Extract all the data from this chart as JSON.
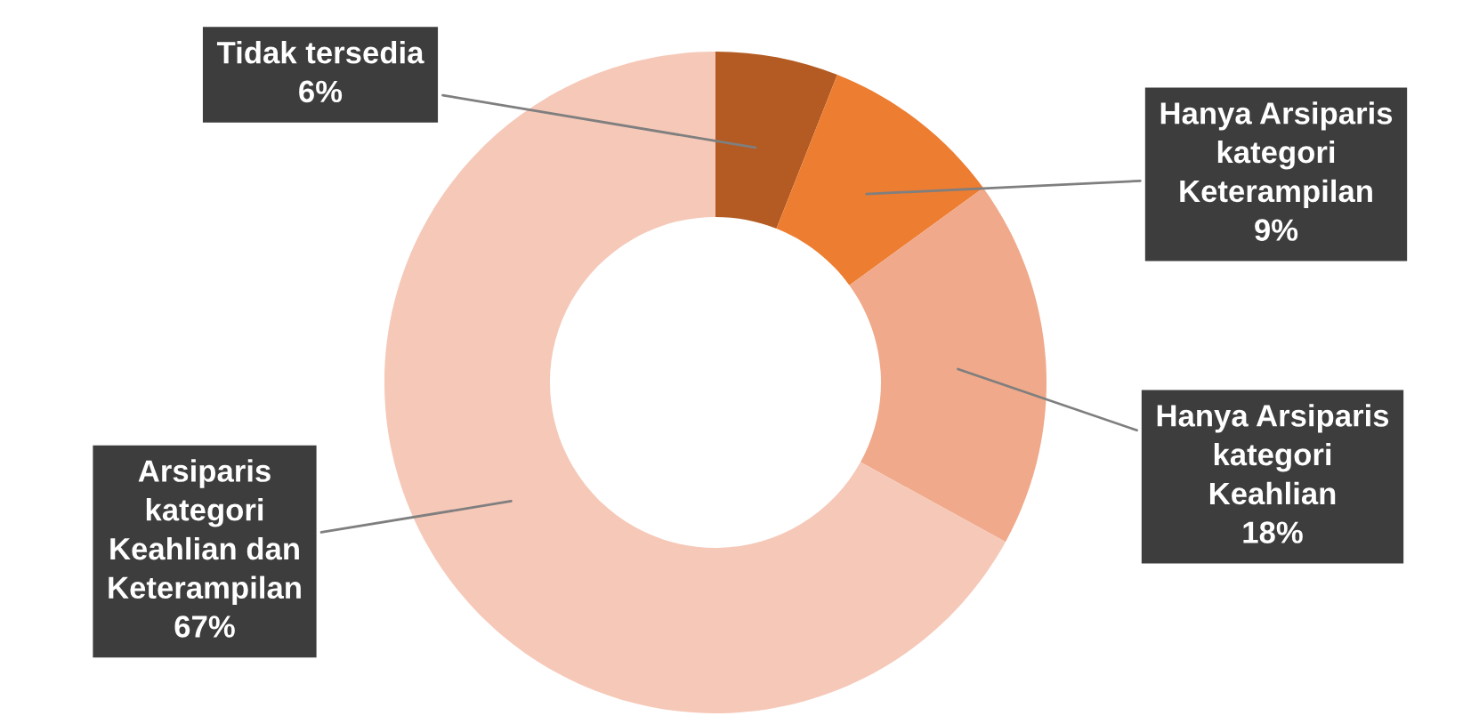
{
  "chart_data": {
    "type": "donut",
    "categories": [
      "Tidak tersedia",
      "Hanya Arsiparis\nkategori\nKeterampilan",
      "Hanya Arsiparis\nkategori\nKeahlian",
      "Arsiparis\nkategori\nKeahlian dan\nKeterampilan"
    ],
    "values": [
      6,
      9,
      18,
      67
    ],
    "value_labels": [
      "6%",
      "9%",
      "18%",
      "67%"
    ],
    "colors": [
      "#b35b22",
      "#ed7d31",
      "#f0a98a",
      "#f6c8b8"
    ],
    "legend": false
  }
}
